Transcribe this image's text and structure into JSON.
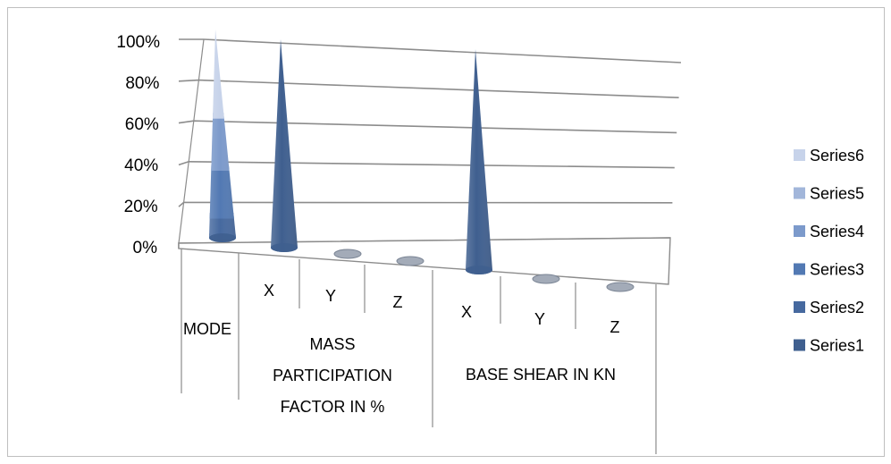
{
  "chart_data": {
    "type": "bar",
    "style": "3d-cone-stacked-100",
    "y_ticks": [
      "0%",
      "20%",
      "40%",
      "60%",
      "80%",
      "100%"
    ],
    "ylim": [
      0,
      100
    ],
    "grid": true,
    "legend_position": "right",
    "level1_labels": [
      "MODE",
      "X",
      "Y",
      "Z",
      "X",
      "Y",
      "Z"
    ],
    "level2_labels": [
      {
        "text": "MASS PARTICIPATION FACTOR IN %",
        "lines": [
          "MASS",
          "PARTICIPATION",
          "FACTOR IN %"
        ]
      },
      {
        "text": "BASE SHEAR IN KN",
        "lines": [
          "BASE SHEAR IN KN"
        ]
      }
    ],
    "series": [
      {
        "name": "Series1",
        "color": "#3f5f8f"
      },
      {
        "name": "Series2",
        "color": "#46699f"
      },
      {
        "name": "Series3",
        "color": "#5279b3"
      },
      {
        "name": "Series4",
        "color": "#7c9acb"
      },
      {
        "name": "Series5",
        "color": "#a2b6da"
      },
      {
        "name": "Series6",
        "color": "#c7d3ea"
      }
    ],
    "cones": [
      {
        "category": "MODE",
        "total_percent": 100,
        "series_percent": [
          2,
          10,
          23,
          25,
          0,
          40
        ]
      },
      {
        "category": "X",
        "total_percent": 100,
        "series_percent": [
          100,
          0,
          0,
          0,
          0,
          0
        ]
      },
      {
        "category": "Y",
        "total_percent": 0,
        "series_percent": [
          0,
          0,
          0,
          0,
          0,
          0
        ]
      },
      {
        "category": "Z",
        "total_percent": 0,
        "series_percent": [
          0,
          0,
          0,
          0,
          0,
          0
        ]
      },
      {
        "category": "X",
        "total_percent": 100,
        "series_percent": [
          100,
          0,
          0,
          0,
          0,
          0
        ]
      },
      {
        "category": "Y",
        "total_percent": 0,
        "series_percent": [
          0,
          0,
          0,
          0,
          0,
          0
        ]
      },
      {
        "category": "Z",
        "total_percent": 0,
        "series_percent": [
          0,
          0,
          0,
          0,
          0,
          0
        ]
      }
    ]
  }
}
